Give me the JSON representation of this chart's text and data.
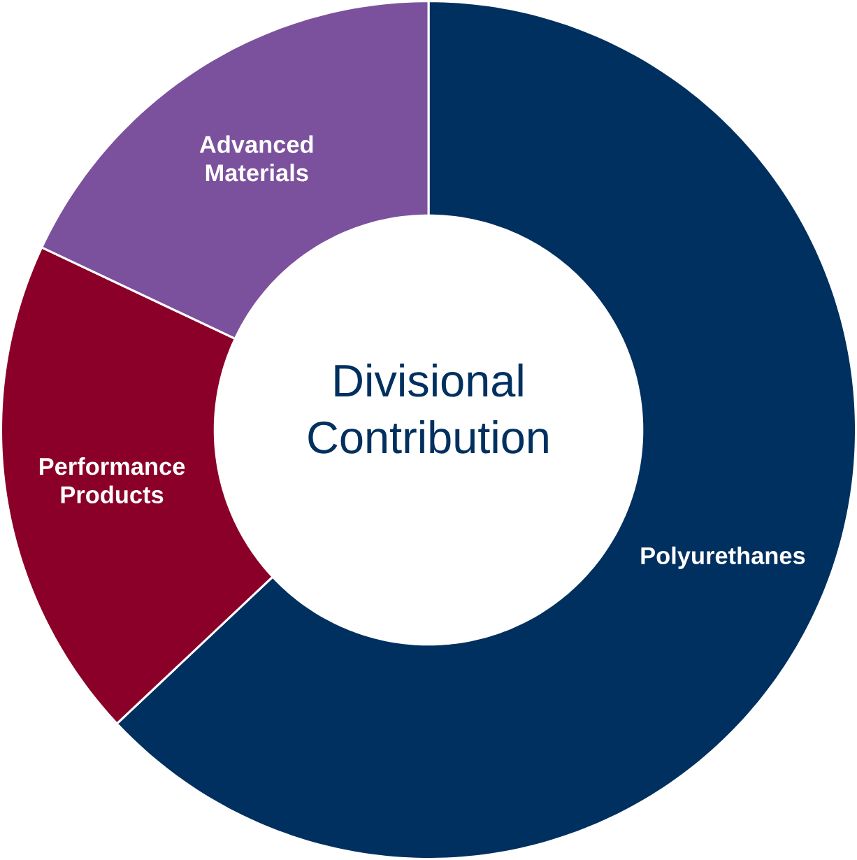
{
  "chart_data": {
    "type": "donut",
    "title": "Divisional Contribution",
    "categories": [
      "Polyurethanes",
      "Performance Products",
      "Advanced Materials"
    ],
    "values": [
      63,
      19,
      18
    ],
    "colors": [
      "#00305f",
      "#8b0029",
      "#7b519d"
    ]
  }
}
